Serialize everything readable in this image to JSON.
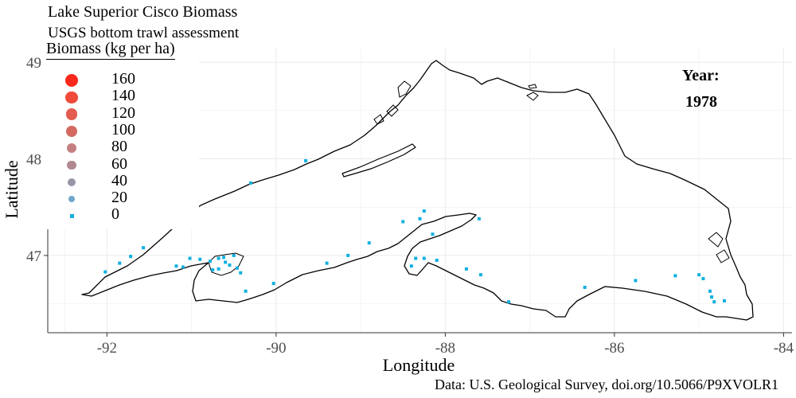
{
  "title": "Lake Superior Cisco Biomass",
  "subtitle": "USGS bottom trawl assessment",
  "caption": "Data: U.S. Geological Survey, doi.org/10.5066/P9XVOLR1",
  "axes": {
    "xlabel": "Longitude",
    "ylabel": "Latitude",
    "x_ticks": [
      "-92",
      "-90",
      "-88",
      "-86",
      "-84"
    ],
    "y_ticks": [
      "47",
      "48",
      "49"
    ],
    "xlim": [
      -92.7,
      -83.9
    ],
    "ylim": [
      46.2,
      49.15
    ]
  },
  "legend": {
    "title": "Biomass (kg per ha)",
    "items": [
      {
        "label": "160",
        "value": 160,
        "color": "#f8281a"
      },
      {
        "label": "140",
        "value": 140,
        "color": "#ef4a3a"
      },
      {
        "label": "120",
        "value": 120,
        "color": "#e35c4f"
      },
      {
        "label": "100",
        "value": 100,
        "color": "#d36a62"
      },
      {
        "label": "80",
        "value": 80,
        "color": "#c48080"
      },
      {
        "label": "60",
        "value": 60,
        "color": "#b08890"
      },
      {
        "label": "40",
        "value": 40,
        "color": "#9a94a8"
      },
      {
        "label": "20",
        "value": 20,
        "color": "#70a6cc"
      },
      {
        "label": "0",
        "value": 0,
        "color": "#0db0e0"
      }
    ]
  },
  "year_label": "Year:",
  "year_value": "1978",
  "colors": {
    "station": "#0db0e0",
    "shoreline": "#000000",
    "grid": "#ebebeb"
  },
  "chart_data": {
    "type": "scatter",
    "x_field": "longitude",
    "y_field": "latitude",
    "value_field": "biomass_kg_per_ha",
    "points": [
      [
        -92.02,
        46.83,
        0
      ],
      [
        -91.85,
        46.92,
        0
      ],
      [
        -91.72,
        46.99,
        0
      ],
      [
        -91.57,
        47.08,
        0
      ],
      [
        -91.18,
        46.89,
        0
      ],
      [
        -91.1,
        46.88,
        0
      ],
      [
        -91.02,
        46.97,
        0
      ],
      [
        -90.9,
        46.96,
        0
      ],
      [
        -90.78,
        46.94,
        0
      ],
      [
        -90.68,
        46.97,
        0
      ],
      [
        -90.62,
        46.98,
        0
      ],
      [
        -90.6,
        46.93,
        0
      ],
      [
        -90.55,
        46.9,
        0
      ],
      [
        -90.5,
        47.0,
        0
      ],
      [
        -90.46,
        46.87,
        0
      ],
      [
        -90.42,
        46.82,
        0
      ],
      [
        -90.75,
        46.85,
        0
      ],
      [
        -90.68,
        46.86,
        0
      ],
      [
        -90.36,
        46.63,
        0
      ],
      [
        -90.03,
        46.71,
        0
      ],
      [
        -89.4,
        46.92,
        0
      ],
      [
        -89.15,
        47.0,
        0
      ],
      [
        -88.9,
        47.13,
        0
      ],
      [
        -88.5,
        47.35,
        0
      ],
      [
        -88.3,
        47.38,
        0
      ],
      [
        -88.25,
        47.46,
        0
      ],
      [
        -88.15,
        47.22,
        0
      ],
      [
        -88.1,
        46.95,
        0
      ],
      [
        -88.25,
        46.97,
        0
      ],
      [
        -88.35,
        46.97,
        0
      ],
      [
        -88.4,
        46.89,
        0
      ],
      [
        -87.75,
        46.86,
        0
      ],
      [
        -87.6,
        47.38,
        0
      ],
      [
        -87.58,
        46.8,
        0
      ],
      [
        -87.25,
        46.52,
        0
      ],
      [
        -86.35,
        46.67,
        0
      ],
      [
        -85.75,
        46.74,
        0
      ],
      [
        -85.28,
        46.79,
        0
      ],
      [
        -85.0,
        46.8,
        0
      ],
      [
        -84.95,
        46.76,
        0
      ],
      [
        -84.87,
        46.63,
        0
      ],
      [
        -84.85,
        46.57,
        0
      ],
      [
        -84.82,
        46.52,
        0
      ],
      [
        -84.7,
        46.53,
        0
      ],
      [
        -90.3,
        47.75,
        0
      ],
      [
        -89.65,
        47.98,
        0
      ]
    ]
  }
}
